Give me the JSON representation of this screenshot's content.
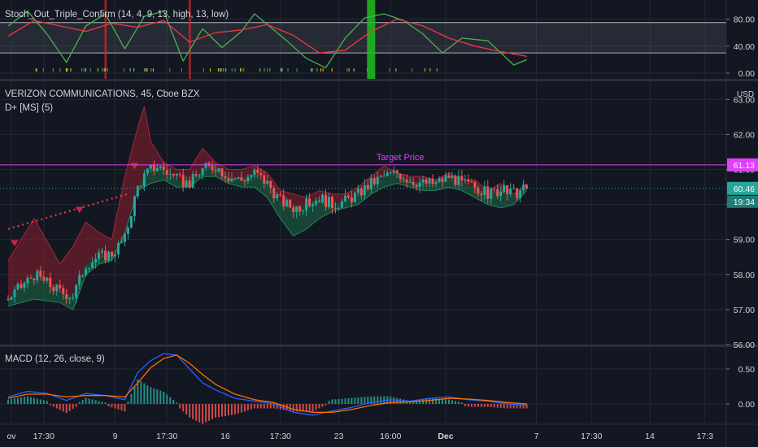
{
  "chart_data": [
    {
      "type": "line",
      "title": "Stoch_Out_Triple_Confirm (14, 4, 9, 13, high, 13, low)",
      "ylim": [
        0,
        100
      ],
      "y_ticks": [
        "80.00",
        "40.00",
        "0.00"
      ],
      "bands": [
        30,
        75
      ],
      "series": [
        {
          "color": "#4caf50",
          "x": [
            0,
            3,
            6,
            9,
            12,
            15,
            18,
            21,
            24,
            27,
            30,
            33,
            36,
            38,
            40,
            43,
            46,
            49,
            52,
            55,
            58,
            61,
            64,
            67,
            70,
            74,
            78,
            80
          ],
          "values": [
            70,
            92,
            58,
            16,
            70,
            88,
            36,
            84,
            92,
            18,
            66,
            38,
            62,
            88,
            72,
            48,
            22,
            8,
            52,
            82,
            88,
            78,
            58,
            30,
            52,
            48,
            12,
            20
          ]
        },
        {
          "color": "#f23645",
          "x": [
            0,
            4,
            8,
            12,
            16,
            20,
            24,
            28,
            32,
            36,
            40,
            44,
            48,
            52,
            56,
            60,
            64,
            68,
            72,
            76,
            80
          ],
          "values": [
            55,
            78,
            70,
            62,
            74,
            68,
            78,
            46,
            60,
            64,
            72,
            56,
            30,
            34,
            62,
            80,
            70,
            52,
            40,
            32,
            25
          ]
        }
      ],
      "signals": [
        {
          "x": 15,
          "color": "#e01e2a"
        },
        {
          "x": 28,
          "color": "#e01e2a"
        },
        {
          "x": 56,
          "color": "#1fbf1f"
        }
      ]
    },
    {
      "type": "candlestick",
      "title": "VERIZON COMMUNICATIONS, 45, Cboe BZX",
      "subtitle": "D+ [MS] (5)",
      "currency": "USD",
      "ylim": [
        56.0,
        63.3
      ],
      "y_ticks": [
        "63.00",
        "62.00",
        "61.00",
        "60.00",
        "59.00",
        "58.00",
        "57.00",
        "56.00"
      ],
      "target_price": 61.13,
      "target_label": "Target Price",
      "target_tag": "61.13",
      "last_price": 60.46,
      "last_tag": "60.46",
      "countdown": "19:34",
      "close_path": {
        "x": [
          0,
          4,
          8,
          10,
          12,
          14,
          16,
          18,
          19,
          20,
          21,
          22,
          23,
          24,
          26,
          28,
          30,
          32,
          34,
          36,
          38,
          40,
          42,
          44,
          46,
          48,
          50,
          52,
          54,
          56,
          58,
          60,
          62,
          64,
          66,
          68,
          70,
          72,
          74,
          76,
          78,
          80
        ],
        "values": [
          57.3,
          58.0,
          57.5,
          57.4,
          58.3,
          58.5,
          58.6,
          59.0,
          59.8,
          60.5,
          60.8,
          61.0,
          61.1,
          61.0,
          60.7,
          60.6,
          61.0,
          61.1,
          60.8,
          60.7,
          60.9,
          60.6,
          60.1,
          59.9,
          60.0,
          60.2,
          60.0,
          60.1,
          60.3,
          60.6,
          60.8,
          60.9,
          60.7,
          60.6,
          60.6,
          60.8,
          60.6,
          60.5,
          60.3,
          60.4,
          60.3,
          60.46
        ]
      },
      "upper_band": {
        "x": [
          0,
          4,
          8,
          10,
          12,
          14,
          16,
          18,
          20,
          21,
          22,
          24,
          26,
          28,
          30,
          32,
          34,
          36,
          38,
          40,
          42,
          44,
          46,
          48,
          50,
          52,
          54,
          56,
          58,
          60,
          62,
          64,
          66,
          68,
          70,
          72,
          74,
          76,
          78,
          80
        ],
        "values": [
          58.4,
          59.6,
          58.3,
          58.8,
          59.5,
          59.2,
          59.0,
          60.8,
          62.2,
          62.8,
          61.8,
          61.2,
          61.0,
          61.0,
          61.6,
          61.2,
          61.0,
          61.0,
          61.1,
          60.9,
          60.4,
          60.3,
          60.2,
          60.4,
          60.3,
          60.3,
          60.5,
          60.8,
          61.1,
          60.9,
          60.8,
          60.8,
          60.7,
          60.9,
          60.7,
          60.7,
          60.4,
          60.6,
          60.3,
          60.6
        ]
      },
      "lower_band": {
        "x": [
          0,
          4,
          8,
          10,
          12,
          14,
          16,
          18,
          20,
          22,
          24,
          26,
          28,
          30,
          32,
          34,
          36,
          38,
          40,
          42,
          44,
          46,
          48,
          50,
          52,
          54,
          56,
          58,
          60,
          62,
          64,
          66,
          68,
          70,
          72,
          74,
          76,
          78,
          80
        ],
        "values": [
          57.1,
          57.3,
          57.2,
          57.0,
          58.0,
          58.3,
          58.4,
          59.2,
          60.4,
          60.6,
          60.7,
          60.5,
          60.5,
          60.8,
          60.8,
          60.6,
          60.5,
          60.5,
          60.2,
          59.6,
          59.1,
          59.3,
          59.6,
          59.8,
          59.9,
          60.0,
          60.3,
          60.5,
          60.6,
          60.5,
          60.4,
          60.4,
          60.5,
          60.4,
          60.2,
          60.0,
          59.9,
          60.0,
          60.4
        ]
      },
      "trend_line": {
        "x": [
          0,
          18.5
        ],
        "values": [
          59.3,
          60.3
        ],
        "color": "#f23645"
      },
      "markers": [
        {
          "x": 1,
          "value": 58.8
        },
        {
          "x": 11,
          "value": 59.75
        },
        {
          "x": 19.5,
          "value": 61.0
        }
      ]
    },
    {
      "type": "line",
      "title": "MACD (12, 26, close, 9)",
      "ylim": [
        -0.32,
        0.85
      ],
      "y_ticks": [
        "0.50",
        "0.00"
      ],
      "series": [
        {
          "color": "#2962ff",
          "x": [
            0,
            3,
            6,
            9,
            12,
            15,
            18,
            20,
            22,
            24,
            26,
            28,
            30,
            32,
            35,
            38,
            41,
            44,
            47,
            50,
            53,
            56,
            59,
            62,
            65,
            68,
            71,
            74,
            77,
            80
          ],
          "values": [
            0.1,
            0.18,
            0.15,
            0.05,
            0.15,
            0.12,
            0.06,
            0.45,
            0.62,
            0.72,
            0.7,
            0.5,
            0.3,
            0.2,
            0.08,
            0.04,
            0.0,
            -0.12,
            -0.16,
            -0.1,
            -0.05,
            0.02,
            0.06,
            0.04,
            0.08,
            0.1,
            0.06,
            0.04,
            0.0,
            -0.02
          ]
        },
        {
          "color": "#ff6d00",
          "x": [
            0,
            3,
            6,
            9,
            12,
            15,
            18,
            20,
            22,
            24,
            26,
            28,
            30,
            32,
            35,
            38,
            41,
            44,
            47,
            50,
            53,
            56,
            59,
            62,
            65,
            68,
            71,
            74,
            77,
            80
          ],
          "values": [
            0.08,
            0.14,
            0.14,
            0.1,
            0.12,
            0.12,
            0.1,
            0.3,
            0.52,
            0.65,
            0.7,
            0.58,
            0.42,
            0.28,
            0.14,
            0.06,
            0.02,
            -0.08,
            -0.12,
            -0.12,
            -0.08,
            -0.02,
            0.02,
            0.03,
            0.05,
            0.08,
            0.07,
            0.05,
            0.02,
            0.0
          ]
        }
      ]
    }
  ],
  "x_axis": {
    "labels": [
      {
        "text": "ov",
        "x": 0.5
      },
      {
        "text": "17:30",
        "x": 5.5
      },
      {
        "text": "9",
        "x": 16.5
      },
      {
        "text": "17:30",
        "x": 24.5
      },
      {
        "text": "16",
        "x": 33.5
      },
      {
        "text": "17:30",
        "x": 42
      },
      {
        "text": "23",
        "x": 51
      },
      {
        "text": "16:00",
        "x": 59
      },
      {
        "text": "Dec",
        "x": 67.5
      },
      {
        "text": "7",
        "x": 81.5
      },
      {
        "text": "17:30",
        "x": 90
      },
      {
        "text": "14",
        "x": 99
      },
      {
        "text": "17:3",
        "x": 107.5
      }
    ]
  }
}
